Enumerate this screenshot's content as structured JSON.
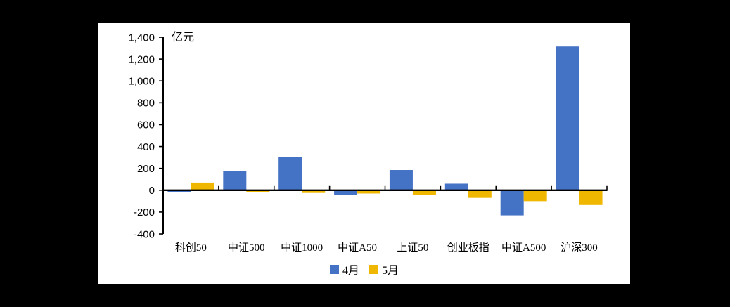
{
  "page": {
    "background_color": "#000000",
    "panel_background": "#ffffff"
  },
  "chart_data": {
    "type": "bar",
    "title": "",
    "unit_label": "亿元",
    "categories": [
      "科创50",
      "中证500",
      "中证1000",
      "中证A50",
      "上证50",
      "创业板指",
      "中证A500",
      "沪深300"
    ],
    "series": [
      {
        "name": "4月",
        "color": "#4472C4",
        "values": [
          -20,
          175,
          305,
          -40,
          185,
          60,
          -230,
          1315
        ]
      },
      {
        "name": "5月",
        "color": "#EFB700",
        "values": [
          70,
          -15,
          -25,
          -30,
          -45,
          -70,
          -100,
          -135
        ]
      }
    ],
    "ylim": [
      -400,
      1400
    ],
    "ytick_step": 200,
    "ytick_labels": [
      "1,400",
      "1,200",
      "1,000",
      "800",
      "600",
      "400",
      "200",
      "0",
      "-200",
      "-400"
    ],
    "xlabel": "",
    "ylabel": "亿元",
    "grid": false,
    "legend_position": "bottom",
    "axis_color": "#000000"
  },
  "legend": {
    "items": [
      {
        "label": "4月",
        "color": "#4472C4"
      },
      {
        "label": "5月",
        "color": "#EFB700"
      }
    ]
  }
}
